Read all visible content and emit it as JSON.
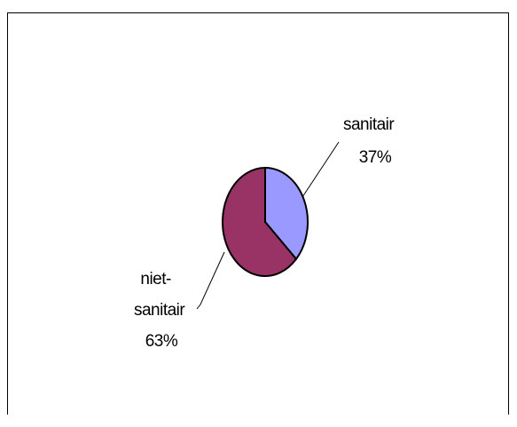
{
  "chart_data": {
    "type": "pie",
    "title": "",
    "slices": [
      {
        "label_lines": [
          "sanitair",
          "37%"
        ],
        "value": 37,
        "color": "#9999ff"
      },
      {
        "label_lines": [
          "niet-",
          "sanitair",
          "63%"
        ],
        "value": 63,
        "color": "#993366"
      }
    ],
    "legend": "none",
    "edge_color": "#000000"
  }
}
